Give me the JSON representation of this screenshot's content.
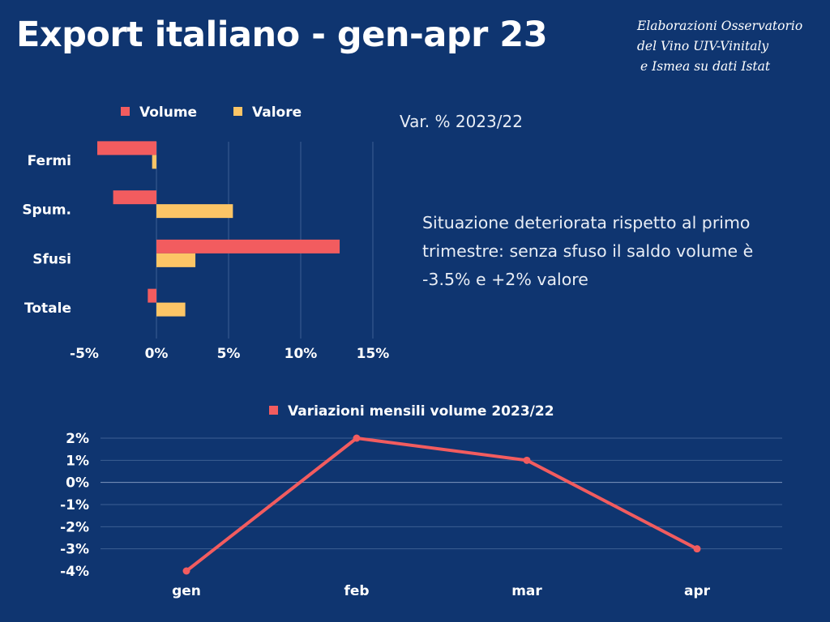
{
  "header": {
    "title": "Export italiano - gen-apr 23",
    "source_lines": [
      "Elaborazioni Osservatorio",
      "del Vino UIV-Vinitaly",
      "e Ismea su dati Istat"
    ]
  },
  "subtitle": "Var. % 2023/22",
  "note": "Situazione deteriorata rispetto al primo trimestre: senza sfuso il saldo volume è -3.5% e +2% valore",
  "colors": {
    "background": "#0f3570",
    "volume": "#f25c5f",
    "valore": "#fcc566",
    "grid": "#3d5f93"
  },
  "chart_data": [
    {
      "type": "bar",
      "orientation": "horizontal",
      "categories": [
        "Fermi",
        "Spum.",
        "Sfusi",
        "Totale"
      ],
      "series": [
        {
          "name": "Volume",
          "values": [
            -4.1,
            -3.0,
            12.7,
            -0.6
          ]
        },
        {
          "name": "Valore",
          "values": [
            -0.3,
            5.3,
            2.7,
            2.0
          ]
        }
      ],
      "xlim": [
        -5,
        15
      ],
      "xticks": [
        "-5%",
        "0%",
        "5%",
        "10%",
        "15%"
      ],
      "legend": "top",
      "grid": true
    },
    {
      "type": "line",
      "categories": [
        "gen",
        "feb",
        "mar",
        "apr"
      ],
      "series": [
        {
          "name": "Variazioni mensili volume 2023/22",
          "values": [
            -4,
            2,
            1,
            -3
          ]
        }
      ],
      "ylim": [
        -4,
        2
      ],
      "yticks": [
        "2%",
        "1%",
        "0%",
        "-1%",
        "-2%",
        "-3%",
        "-4%"
      ],
      "legend": "top",
      "grid": true
    }
  ]
}
